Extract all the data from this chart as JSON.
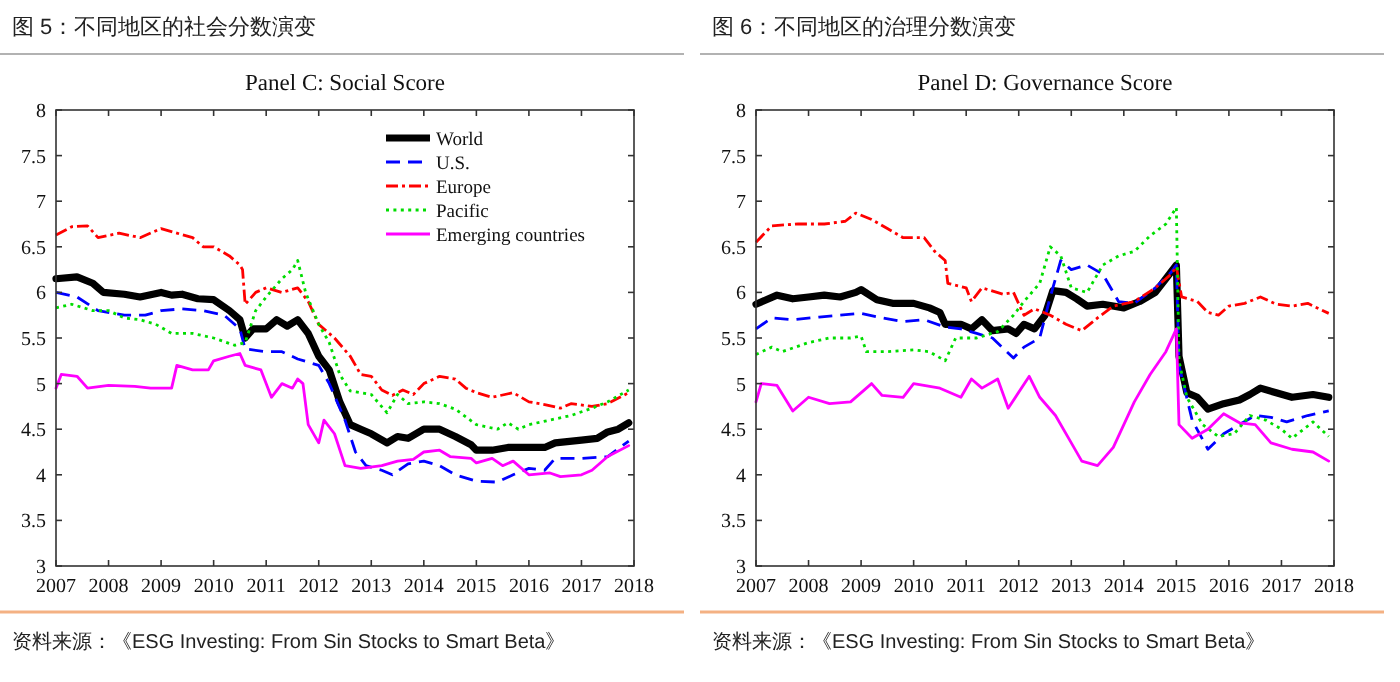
{
  "chart_data": [
    {
      "type": "line",
      "title": "图 5：不同地区的社会分数演变",
      "subtitle": "Panel C: Social Score",
      "annotations": [
        "资料来源：《ESG Investing: From Sin Stocks to Smart Beta》"
      ],
      "xlim": [
        2007,
        2018
      ],
      "xticks": [
        2007,
        2008,
        2009,
        2010,
        2011,
        2012,
        2013,
        2014,
        2015,
        2016,
        2017,
        2018
      ],
      "ylim": [
        3,
        8
      ],
      "yticks": [
        3,
        3.5,
        4,
        4.5,
        5,
        5.5,
        6,
        6.5,
        7,
        7.5,
        8
      ],
      "grid": false,
      "legend": "top right",
      "series": [
        {
          "name": "World",
          "color": "#000000",
          "line_style": "solid",
          "x": [
            2007,
            2007.4,
            2007.7,
            2007.9,
            2008.3,
            2008.6,
            2009,
            2009.2,
            2009.4,
            2009.7,
            2010,
            2010.3,
            2010.5,
            2010.6,
            2010.75,
            2011,
            2011.2,
            2011.4,
            2011.6,
            2011.8,
            2012,
            2012.2,
            2012.4,
            2012.6,
            2012.8,
            2013,
            2013.3,
            2013.5,
            2013.7,
            2014,
            2014.3,
            2014.6,
            2014.9,
            2015,
            2015.3,
            2015.6,
            2016,
            2016.3,
            2016.5,
            2017,
            2017.3,
            2017.5,
            2017.7,
            2017.9
          ],
          "values": [
            6.15,
            6.17,
            6.1,
            6.0,
            5.98,
            5.95,
            6.0,
            5.97,
            5.98,
            5.93,
            5.92,
            5.8,
            5.7,
            5.5,
            5.6,
            5.6,
            5.7,
            5.63,
            5.7,
            5.55,
            5.3,
            5.15,
            4.8,
            4.55,
            4.5,
            4.45,
            4.35,
            4.42,
            4.4,
            4.5,
            4.5,
            4.42,
            4.33,
            4.27,
            4.27,
            4.3,
            4.3,
            4.3,
            4.35,
            4.38,
            4.4,
            4.47,
            4.5,
            4.57
          ]
        },
        {
          "name": "U.S.",
          "color": "#0000ff",
          "line_style": "dashed",
          "x": [
            2007,
            2007.4,
            2007.8,
            2008.3,
            2008.7,
            2009,
            2009.4,
            2009.8,
            2010.2,
            2010.5,
            2010.6,
            2011,
            2011.3,
            2011.6,
            2012,
            2012.2,
            2012.5,
            2012.7,
            2012.9,
            2013.2,
            2013.4,
            2013.7,
            2014,
            2014.3,
            2014.6,
            2015,
            2015.4,
            2015.7,
            2016,
            2016.3,
            2016.5,
            2017,
            2017.5,
            2017.9
          ],
          "values": [
            6.0,
            5.95,
            5.8,
            5.75,
            5.75,
            5.8,
            5.82,
            5.8,
            5.75,
            5.6,
            5.38,
            5.35,
            5.35,
            5.27,
            5.2,
            5.0,
            4.6,
            4.25,
            4.1,
            4.05,
            4.0,
            4.12,
            4.15,
            4.1,
            4.0,
            3.93,
            3.92,
            4.0,
            4.07,
            4.05,
            4.18,
            4.18,
            4.2,
            4.37
          ]
        },
        {
          "name": "Europe",
          "color": "#ff0000",
          "line_style": "dashdot",
          "x": [
            2007,
            2007.3,
            2007.6,
            2007.8,
            2008.2,
            2008.6,
            2009,
            2009.3,
            2009.6,
            2009.8,
            2010,
            2010.3,
            2010.5,
            2010.55,
            2010.6,
            2010.8,
            2011,
            2011.3,
            2011.6,
            2011.8,
            2012,
            2012.3,
            2012.6,
            2012.8,
            2013,
            2013.2,
            2013.4,
            2013.6,
            2013.8,
            2014,
            2014.3,
            2014.6,
            2014.8,
            2015,
            2015.3,
            2015.7,
            2016,
            2016.3,
            2016.6,
            2016.8,
            2017.2,
            2017.5,
            2017.9
          ],
          "values": [
            6.63,
            6.72,
            6.73,
            6.6,
            6.65,
            6.6,
            6.7,
            6.65,
            6.6,
            6.5,
            6.5,
            6.4,
            6.3,
            6.25,
            5.87,
            6.0,
            6.05,
            6.0,
            6.05,
            5.9,
            5.65,
            5.5,
            5.3,
            5.1,
            5.08,
            4.93,
            4.87,
            4.93,
            4.88,
            5.0,
            5.08,
            5.05,
            4.95,
            4.9,
            4.85,
            4.9,
            4.8,
            4.77,
            4.73,
            4.78,
            4.75,
            4.78,
            4.9
          ]
        },
        {
          "name": "Pacific",
          "color": "#00dd00",
          "line_style": "dotted",
          "x": [
            2007,
            2007.3,
            2007.7,
            2008,
            2008.3,
            2008.6,
            2008.9,
            2009.2,
            2009.6,
            2010,
            2010.4,
            2010.6,
            2010.8,
            2011,
            2011.3,
            2011.5,
            2011.6,
            2011.75,
            2012,
            2012.2,
            2012.4,
            2012.6,
            2013,
            2013.3,
            2013.5,
            2013.7,
            2014,
            2014.3,
            2014.6,
            2015,
            2015.4,
            2015.6,
            2015.8,
            2016,
            2016.4,
            2016.8,
            2017.2,
            2017.5,
            2017.9
          ],
          "values": [
            5.83,
            5.87,
            5.8,
            5.8,
            5.72,
            5.7,
            5.65,
            5.55,
            5.55,
            5.5,
            5.42,
            5.45,
            5.8,
            5.95,
            6.15,
            6.25,
            6.35,
            6.0,
            5.65,
            5.45,
            5.1,
            4.92,
            4.88,
            4.68,
            4.88,
            4.78,
            4.8,
            4.78,
            4.72,
            4.55,
            4.5,
            4.57,
            4.5,
            4.55,
            4.6,
            4.65,
            4.73,
            4.8,
            4.93
          ]
        },
        {
          "name": "Emerging countries",
          "color": "#ff00ff",
          "line_style": "solid",
          "x": [
            2007,
            2007.1,
            2007.4,
            2007.6,
            2008,
            2008.5,
            2008.8,
            2009.2,
            2009.3,
            2009.6,
            2009.9,
            2010,
            2010.3,
            2010.5,
            2010.6,
            2010.9,
            2011.1,
            2011.3,
            2011.5,
            2011.6,
            2011.7,
            2011.8,
            2012,
            2012.1,
            2012.3,
            2012.5,
            2012.8,
            2013.2,
            2013.5,
            2013.8,
            2014,
            2014.3,
            2014.5,
            2014.9,
            2015,
            2015.3,
            2015.5,
            2015.7,
            2016,
            2016.4,
            2016.6,
            2017,
            2017.2,
            2017.5,
            2017.9
          ],
          "values": [
            4.95,
            5.1,
            5.08,
            4.95,
            4.98,
            4.97,
            4.95,
            4.95,
            5.2,
            5.15,
            5.15,
            5.25,
            5.3,
            5.33,
            5.2,
            5.15,
            4.85,
            5.0,
            4.95,
            5.05,
            5.0,
            4.55,
            4.35,
            4.6,
            4.45,
            4.1,
            4.07,
            4.1,
            4.15,
            4.17,
            4.25,
            4.27,
            4.2,
            4.18,
            4.13,
            4.18,
            4.1,
            4.15,
            4.0,
            4.02,
            3.98,
            4.0,
            4.05,
            4.2,
            4.32
          ]
        }
      ]
    },
    {
      "type": "line",
      "title": "图 6：不同地区的治理分数演变",
      "subtitle": "Panel D: Governance Score",
      "annotations": [
        "资料来源：《ESG Investing: From Sin Stocks to Smart Beta》"
      ],
      "xlim": [
        2007,
        2018
      ],
      "xticks": [
        2007,
        2008,
        2009,
        2010,
        2011,
        2012,
        2013,
        2014,
        2015,
        2016,
        2017,
        2018
      ],
      "ylim": [
        3,
        8
      ],
      "yticks": [
        3,
        3.5,
        4,
        4.5,
        5,
        5.5,
        6,
        6.5,
        7,
        7.5,
        8
      ],
      "grid": false,
      "legend": false,
      "series": [
        {
          "color": "#000000",
          "line_style": "solid",
          "x": [
            2007,
            2007.4,
            2007.7,
            2008,
            2008.3,
            2008.6,
            2008.9,
            2009,
            2009.3,
            2009.6,
            2010,
            2010.3,
            2010.5,
            2010.6,
            2010.9,
            2011.1,
            2011.3,
            2011.5,
            2011.8,
            2011.95,
            2012.1,
            2012.3,
            2012.5,
            2012.65,
            2012.9,
            2013.1,
            2013.3,
            2013.6,
            2014,
            2014.3,
            2014.6,
            2014.8,
            2015,
            2015.05,
            2015.2,
            2015.4,
            2015.6,
            2015.9,
            2016.2,
            2016.4,
            2016.6,
            2016.9,
            2017.2,
            2017.6,
            2017.9
          ],
          "values": [
            5.87,
            5.97,
            5.93,
            5.95,
            5.97,
            5.95,
            6.0,
            6.03,
            5.92,
            5.88,
            5.88,
            5.83,
            5.78,
            5.65,
            5.65,
            5.6,
            5.7,
            5.58,
            5.6,
            5.55,
            5.65,
            5.6,
            5.75,
            6.02,
            6.0,
            5.93,
            5.85,
            5.87,
            5.83,
            5.9,
            6.0,
            6.15,
            6.3,
            5.3,
            4.9,
            4.85,
            4.72,
            4.78,
            4.82,
            4.88,
            4.95,
            4.9,
            4.85,
            4.88,
            4.85
          ]
        },
        {
          "color": "#0000ff",
          "line_style": "dashed",
          "x": [
            2007,
            2007.3,
            2007.7,
            2008.2,
            2008.6,
            2009,
            2009.4,
            2009.8,
            2010.2,
            2010.6,
            2010.9,
            2011.2,
            2011.5,
            2011.9,
            2012.1,
            2012.4,
            2012.6,
            2012.8,
            2013,
            2013.3,
            2013.6,
            2013.9,
            2014.2,
            2014.6,
            2014.9,
            2015,
            2015.05,
            2015.3,
            2015.6,
            2015.9,
            2016.2,
            2016.5,
            2016.8,
            2017.1,
            2017.5,
            2017.9
          ],
          "values": [
            5.6,
            5.72,
            5.7,
            5.73,
            5.75,
            5.77,
            5.72,
            5.68,
            5.7,
            5.62,
            5.6,
            5.55,
            5.5,
            5.28,
            5.4,
            5.5,
            5.95,
            6.35,
            6.25,
            6.3,
            6.2,
            5.9,
            5.88,
            6.05,
            6.22,
            6.3,
            5.2,
            4.6,
            4.28,
            4.45,
            4.55,
            4.65,
            4.63,
            4.58,
            4.65,
            4.7
          ]
        },
        {
          "color": "#ff0000",
          "line_style": "dashdot",
          "x": [
            2007,
            2007.3,
            2007.8,
            2008.3,
            2008.7,
            2008.9,
            2009.2,
            2009.5,
            2009.8,
            2010.2,
            2010.4,
            2010.6,
            2010.65,
            2011,
            2011.1,
            2011.3,
            2011.7,
            2011.9,
            2012.1,
            2012.3,
            2012.6,
            2012.9,
            2013.2,
            2013.5,
            2013.8,
            2014.2,
            2014.6,
            2014.9,
            2015,
            2015.1,
            2015.4,
            2015.6,
            2015.8,
            2016,
            2016.3,
            2016.6,
            2016.9,
            2017.2,
            2017.5,
            2017.9
          ],
          "values": [
            6.55,
            6.73,
            6.75,
            6.75,
            6.78,
            6.87,
            6.8,
            6.7,
            6.6,
            6.6,
            6.45,
            6.35,
            6.1,
            6.05,
            5.9,
            6.05,
            5.98,
            6.0,
            5.75,
            5.82,
            5.75,
            5.65,
            5.58,
            5.72,
            5.85,
            5.9,
            6.05,
            6.2,
            6.28,
            5.95,
            5.9,
            5.78,
            5.75,
            5.85,
            5.88,
            5.95,
            5.87,
            5.85,
            5.88,
            5.77
          ]
        },
        {
          "color": "#00dd00",
          "line_style": "dotted",
          "x": [
            2007,
            2007.3,
            2007.5,
            2008,
            2008.4,
            2008.8,
            2009,
            2009.1,
            2009.5,
            2010,
            2010.3,
            2010.6,
            2010.8,
            2011.2,
            2011.6,
            2011.9,
            2012.1,
            2012.4,
            2012.6,
            2012.8,
            2013,
            2013.3,
            2013.6,
            2013.9,
            2014.2,
            2014.5,
            2014.8,
            2015,
            2015.05,
            2015.2,
            2015.5,
            2015.8,
            2016.1,
            2016.4,
            2016.7,
            2017,
            2017.2,
            2017.6,
            2017.9
          ],
          "values": [
            5.32,
            5.4,
            5.35,
            5.45,
            5.5,
            5.5,
            5.52,
            5.35,
            5.35,
            5.37,
            5.35,
            5.25,
            5.5,
            5.5,
            5.57,
            5.75,
            5.9,
            6.1,
            6.5,
            6.4,
            6.05,
            6.0,
            6.3,
            6.4,
            6.45,
            6.62,
            6.75,
            6.93,
            5.25,
            4.85,
            4.55,
            4.42,
            4.45,
            4.65,
            4.6,
            4.5,
            4.4,
            4.58,
            4.42
          ]
        },
        {
          "color": "#ff00ff",
          "line_style": "solid",
          "x": [
            2007,
            2007.1,
            2007.4,
            2007.7,
            2008,
            2008.4,
            2008.8,
            2009.2,
            2009.4,
            2009.8,
            2010,
            2010.5,
            2010.9,
            2011.1,
            2011.3,
            2011.6,
            2011.8,
            2012.2,
            2012.4,
            2012.7,
            2013,
            2013.2,
            2013.5,
            2013.8,
            2014,
            2014.2,
            2014.5,
            2014.8,
            2015,
            2015.05,
            2015.3,
            2015.6,
            2015.9,
            2016.2,
            2016.5,
            2016.8,
            2017.2,
            2017.6,
            2017.9
          ],
          "values": [
            4.8,
            5.0,
            4.98,
            4.7,
            4.85,
            4.78,
            4.8,
            5.0,
            4.87,
            4.85,
            5.0,
            4.95,
            4.85,
            5.05,
            4.95,
            5.05,
            4.73,
            5.08,
            4.85,
            4.65,
            4.35,
            4.15,
            4.1,
            4.3,
            4.55,
            4.8,
            5.1,
            5.35,
            5.6,
            4.55,
            4.4,
            4.5,
            4.67,
            4.57,
            4.55,
            4.35,
            4.28,
            4.25,
            4.15
          ]
        }
      ]
    }
  ]
}
